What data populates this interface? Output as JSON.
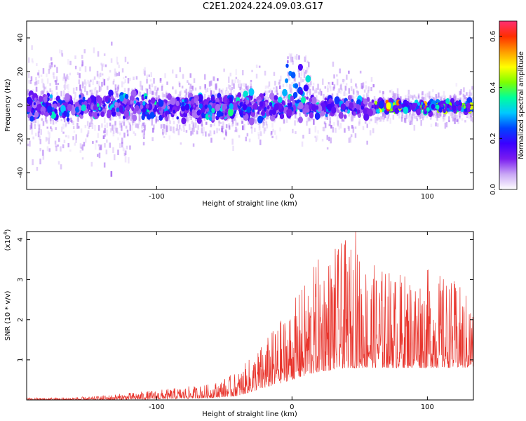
{
  "title": "C2E1.2024.224.09.03.G17",
  "chart_data": [
    {
      "type": "heatmap",
      "xlabel": "Height of straight line (km)",
      "ylabel": "Frequency (Hz)",
      "xlim": [
        -196,
        134
      ],
      "ylim": [
        -50,
        50
      ],
      "xticks": [
        -100,
        0,
        100
      ],
      "yticks": [
        -40,
        -20,
        0,
        20,
        40
      ],
      "colorbar": {
        "label": "Normalized spectral amplitude",
        "range": [
          0,
          0.66
        ],
        "ticks": [
          0.0,
          0.2,
          0.4,
          0.6
        ],
        "colormap": [
          "#ffffff",
          "#c9a6f5",
          "#7a1cf0",
          "#3a00ff",
          "#0044ff",
          "#00c8ff",
          "#00ff9c",
          "#7dff00",
          "#ffff00",
          "#ff9b00",
          "#ff2e00",
          "#ff2e74"
        ]
      },
      "structure": {
        "baseline_band_hz": [
          -10,
          8
        ],
        "spike_at_km": [
          0,
          10
        ],
        "spike_peak_hz": 25,
        "strong_amplitude_region_km": [
          60,
          134
        ],
        "strong_amplitude_max": 0.66
      }
    },
    {
      "type": "line",
      "xlabel": "Height of straight line (km)",
      "ylabel": "SNR (10 * v/v)",
      "yscale_label": "(x10",
      "yscale_exp": "4",
      "yscale_suffix": ")",
      "xlim": [
        -196,
        134
      ],
      "ylim": [
        0,
        4.2
      ],
      "xticks": [
        -100,
        0,
        100
      ],
      "yticks": [
        1,
        2,
        3,
        4
      ],
      "color": "#e8342c",
      "envelope": {
        "x": [
          -196,
          -150,
          -100,
          -60,
          -40,
          -20,
          0,
          20,
          40,
          60,
          80,
          100,
          120,
          134
        ],
        "upper": [
          0.05,
          0.08,
          0.25,
          0.4,
          0.7,
          1.5,
          2.4,
          3.6,
          4.0,
          3.4,
          3.2,
          3.3,
          3.0,
          2.5
        ],
        "lower": [
          0.0,
          0.0,
          0.02,
          0.05,
          0.1,
          0.3,
          0.5,
          0.7,
          0.8,
          0.8,
          0.8,
          0.8,
          0.8,
          0.8
        ]
      },
      "max_value": 4.2,
      "max_at_km": 47
    }
  ]
}
